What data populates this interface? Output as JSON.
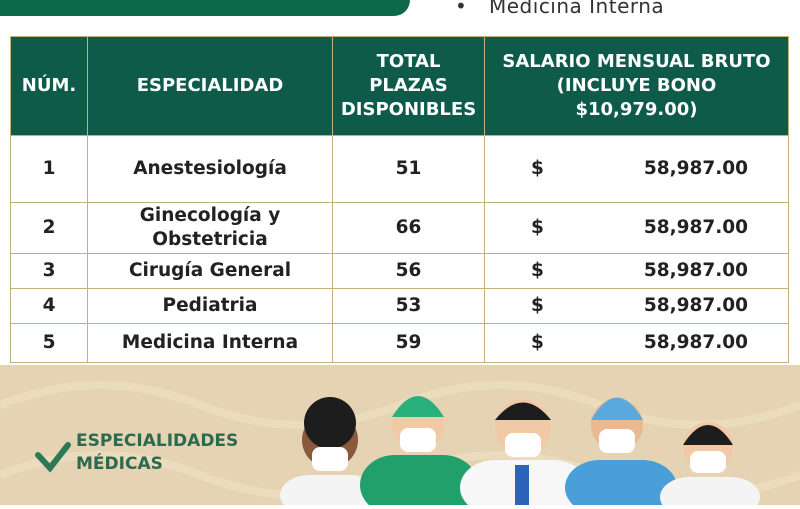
{
  "top_bullet": "Medicina Interna",
  "table": {
    "headers": [
      [
        "NÚM."
      ],
      [
        "ESPECIALIDAD"
      ],
      [
        "TOTAL",
        "PLAZAS",
        "DISPONIBLES"
      ],
      [
        "SALARIO MENSUAL BRUTO",
        "(INCLUYE BONO",
        "$10,979.00)"
      ]
    ],
    "rows": [
      [
        "1",
        "Anestesiología",
        "51",
        "$",
        "58,987.00"
      ],
      [
        "2",
        "Ginecología y Obstetricia",
        "66",
        "$",
        "58,987.00"
      ],
      [
        "3",
        "Cirugía General",
        "56",
        "$",
        "58,987.00"
      ],
      [
        "4",
        "Pediatria",
        "53",
        "$",
        "58,987.00"
      ],
      [
        "5",
        "Medicina Interna",
        "59",
        "$",
        "58,987.00"
      ]
    ]
  },
  "footer": {
    "label": [
      "ESPECIALIDADES",
      "MÉDICAS"
    ]
  }
}
